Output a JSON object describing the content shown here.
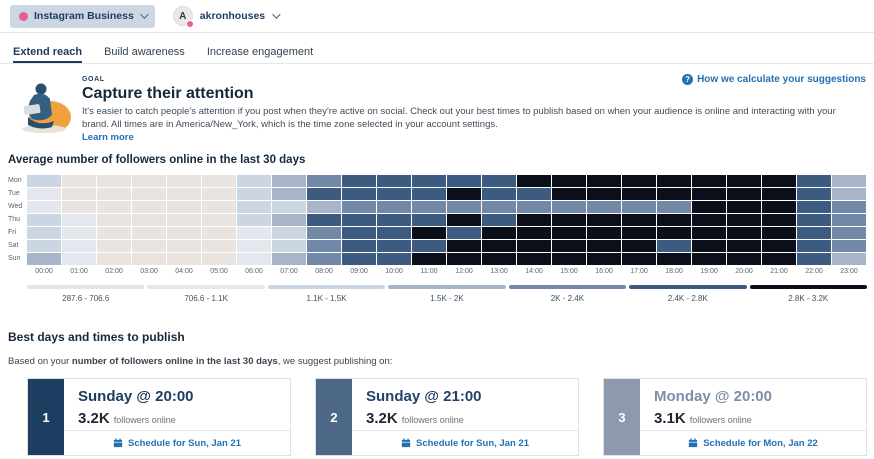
{
  "topbar": {
    "source_label": "Instagram Business",
    "account_name": "akronhouses",
    "avatar_initial": "A"
  },
  "tabs": [
    {
      "label": "Extend reach",
      "active": true
    },
    {
      "label": "Build awareness",
      "active": false
    },
    {
      "label": "Increase engagement",
      "active": false
    }
  ],
  "goal": {
    "eyebrow": "GOAL",
    "title": "Capture their attention",
    "description": "It's easier to catch people's attention if you post when they're active on social. Check out your best times to publish based on when your audience is online and interacting with your brand. All times are in America/New_York, which is the time zone selected in your account settings.",
    "learn_more_label": "Learn more",
    "help_link_label": "How we calculate your suggestions"
  },
  "chart_data": {
    "type": "heatmap",
    "title": "Average number of followers online in the last 30 days",
    "rows": [
      "Mon",
      "Tue",
      "Wed",
      "Thu",
      "Fri",
      "Sat",
      "Sun"
    ],
    "columns": [
      "00:00",
      "01:00",
      "02:00",
      "03:00",
      "04:00",
      "05:00",
      "06:00",
      "07:00",
      "08:00",
      "09:00",
      "10:00",
      "11:00",
      "12:00",
      "13:00",
      "14:00",
      "15:00",
      "16:00",
      "17:00",
      "18:00",
      "19:00",
      "20:00",
      "21:00",
      "22:00",
      "23:00"
    ],
    "legend": [
      {
        "range": "287.6 - 706.6",
        "color": "#e9e4df"
      },
      {
        "range": "706.6 - 1.1K",
        "color": "#e4e8ee"
      },
      {
        "range": "1.1K - 1.5K",
        "color": "#ccd6e2"
      },
      {
        "range": "1.5K - 2K",
        "color": "#a8b4c8"
      },
      {
        "range": "2K - 2.4K",
        "color": "#7189a6"
      },
      {
        "range": "2.4K - 2.8K",
        "color": "#3d5a80"
      },
      {
        "range": "2.8K - 3.2K",
        "color": "#0a0f1a"
      }
    ],
    "grid_values_are_legend_bucket_indices": true,
    "grid": [
      [
        2,
        0,
        0,
        0,
        0,
        0,
        2,
        3,
        4,
        5,
        5,
        5,
        5,
        5,
        6,
        6,
        6,
        6,
        6,
        6,
        6,
        6,
        5,
        3
      ],
      [
        1,
        0,
        0,
        0,
        0,
        0,
        2,
        3,
        5,
        5,
        5,
        5,
        6,
        5,
        5,
        6,
        6,
        6,
        6,
        6,
        6,
        6,
        5,
        3
      ],
      [
        1,
        0,
        0,
        0,
        0,
        0,
        2,
        2,
        3,
        4,
        4,
        4,
        4,
        4,
        4,
        4,
        4,
        4,
        4,
        6,
        6,
        6,
        5,
        4
      ],
      [
        2,
        1,
        0,
        0,
        0,
        0,
        2,
        3,
        5,
        5,
        5,
        5,
        6,
        5,
        6,
        6,
        6,
        6,
        6,
        6,
        6,
        6,
        5,
        4
      ],
      [
        2,
        1,
        0,
        0,
        0,
        0,
        1,
        2,
        4,
        5,
        5,
        6,
        5,
        6,
        6,
        6,
        6,
        6,
        6,
        6,
        6,
        6,
        5,
        4
      ],
      [
        2,
        1,
        0,
        0,
        0,
        0,
        1,
        2,
        4,
        5,
        5,
        5,
        6,
        6,
        6,
        6,
        6,
        6,
        5,
        6,
        6,
        6,
        5,
        4
      ],
      [
        3,
        1,
        0,
        0,
        0,
        0,
        1,
        3,
        4,
        5,
        5,
        6,
        6,
        6,
        6,
        6,
        6,
        6,
        6,
        6,
        6,
        6,
        5,
        3
      ]
    ]
  },
  "best_times": {
    "heading": "Best days and times to publish",
    "intro_prefix": "Based on your ",
    "intro_bold": "number of followers online in the last 30 days",
    "intro_suffix": ", we suggest publishing on:",
    "cards": [
      {
        "rank": "1",
        "title": "Sunday @ 20:00",
        "value": "3.2K",
        "value_suffix": "followers online",
        "schedule_label": "Schedule for Sun, Jan 21",
        "band_color": "#1d3d61",
        "title_color": "#1e3e60"
      },
      {
        "rank": "2",
        "title": "Sunday @ 21:00",
        "value": "3.2K",
        "value_suffix": "followers online",
        "schedule_label": "Schedule for Sun, Jan 21",
        "band_color": "#4d6787",
        "title_color": "#24436a"
      },
      {
        "rank": "3",
        "title": "Monday @ 20:00",
        "value": "3.1K",
        "value_suffix": "followers online",
        "schedule_label": "Schedule for Mon, Jan 22",
        "band_color": "#8d9aae",
        "title_color": "#7e8ea9"
      }
    ]
  }
}
